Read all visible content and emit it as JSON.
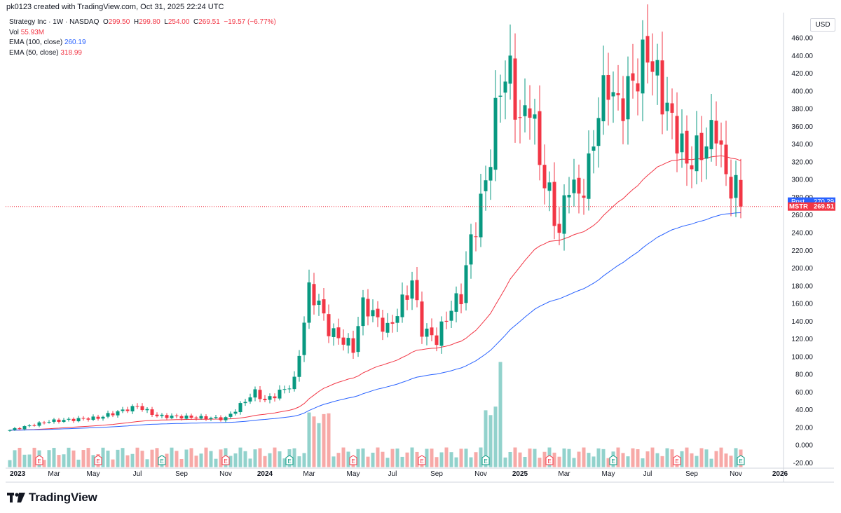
{
  "header": {
    "created_line": "pk0123 created with TradingView.com, Oct 31, 2025 22:24 UTC"
  },
  "legend": {
    "symbol": "Strategy Inc · 1W · NASDAQ",
    "o_label": "O",
    "o_value": "299.50",
    "h_label": "H",
    "h_value": "299.80",
    "l_label": "L",
    "l_value": "254.00",
    "c_label": "C",
    "c_value": "269.51",
    "change": "−19.57 (−6.77%)",
    "vol_label": "Vol",
    "vol_value": "55.93M",
    "ema100_label": "EMA (100, close)",
    "ema100_value": "260.19",
    "ema50_label": "EMA (50, close)",
    "ema50_value": "318.99"
  },
  "currency": "USD",
  "brand": {
    "name": "TradingView"
  },
  "colors": {
    "up": "#089981",
    "down": "#f23645",
    "vol_up": "#92d2cc",
    "vol_down": "#f7a9a7",
    "ema100": "#2962ff",
    "ema50": "#f23645",
    "post_box": "#2962ff",
    "last_box": "#f23645"
  },
  "chart_data": {
    "type": "candlestick",
    "title": "Strategy Inc · 1W · NASDAQ",
    "ylim": [
      -30,
      468
    ],
    "y_ticks": [
      "460.00",
      "440.00",
      "420.00",
      "400.00",
      "380.00",
      "360.00",
      "340.00",
      "320.00",
      "300.00",
      "280.00",
      "260.00",
      "240.00",
      "220.00",
      "200.00",
      "180.00",
      "160.00",
      "140.00",
      "120.00",
      "100.00",
      "80.00",
      "60.00",
      "40.00",
      "20.00",
      "0.000",
      "-20.00"
    ],
    "y_tick_values": [
      460,
      440,
      420,
      400,
      380,
      360,
      340,
      320,
      300,
      280,
      260,
      240,
      220,
      200,
      180,
      160,
      140,
      120,
      100,
      80,
      60,
      40,
      20,
      0,
      -20
    ],
    "x_labels": [
      "2023",
      "Mar",
      "May",
      "Jul",
      "Sep",
      "Nov",
      "2024",
      "Mar",
      "May",
      "Jul",
      "Sep",
      "Nov",
      "2025",
      "Mar",
      "May",
      "Jul",
      "Sep",
      "Nov",
      "2026"
    ],
    "x_label_weeks": [
      0,
      9,
      17,
      26,
      35,
      44,
      52,
      61,
      70,
      78,
      87,
      96,
      104,
      113,
      122,
      130,
      139,
      148,
      157
    ],
    "series": [
      {
        "name": "MSTR",
        "key_closes": [
          [
            0,
            17
          ],
          [
            8,
            27
          ],
          [
            18,
            31
          ],
          [
            26,
            44
          ],
          [
            30,
            33
          ],
          [
            44,
            30
          ],
          [
            50,
            60
          ],
          [
            52,
            50
          ],
          [
            58,
            70
          ],
          [
            61,
            175
          ],
          [
            63,
            160
          ],
          [
            65,
            130
          ],
          [
            70,
            110
          ],
          [
            72,
            160
          ],
          [
            77,
            130
          ],
          [
            80,
            160
          ],
          [
            82,
            185
          ],
          [
            84,
            130
          ],
          [
            87,
            120
          ],
          [
            90,
            155
          ],
          [
            92,
            170
          ],
          [
            94,
            230
          ],
          [
            96,
            270
          ],
          [
            98,
            330
          ],
          [
            100,
            410
          ],
          [
            102,
            420
          ],
          [
            104,
            360
          ],
          [
            106,
            390
          ],
          [
            108,
            320
          ],
          [
            112,
            240
          ],
          [
            114,
            300
          ],
          [
            116,
            280
          ],
          [
            118,
            310
          ],
          [
            120,
            380
          ],
          [
            122,
            410
          ],
          [
            124,
            380
          ],
          [
            128,
            420
          ],
          [
            130,
            445
          ],
          [
            134,
            380
          ],
          [
            138,
            320
          ],
          [
            142,
            340
          ],
          [
            144,
            360
          ],
          [
            146,
            300
          ],
          [
            148,
            290
          ],
          [
            149,
            269.51
          ]
        ]
      },
      {
        "name": "EMA (50, close)",
        "last": 318.99
      },
      {
        "name": "EMA (100, close)",
        "last": 260.19
      }
    ],
    "last_price": 269.51,
    "last_label": "MSTR",
    "post_price": 270.29,
    "post_label": "Post",
    "annotations": [
      "E"
    ]
  }
}
